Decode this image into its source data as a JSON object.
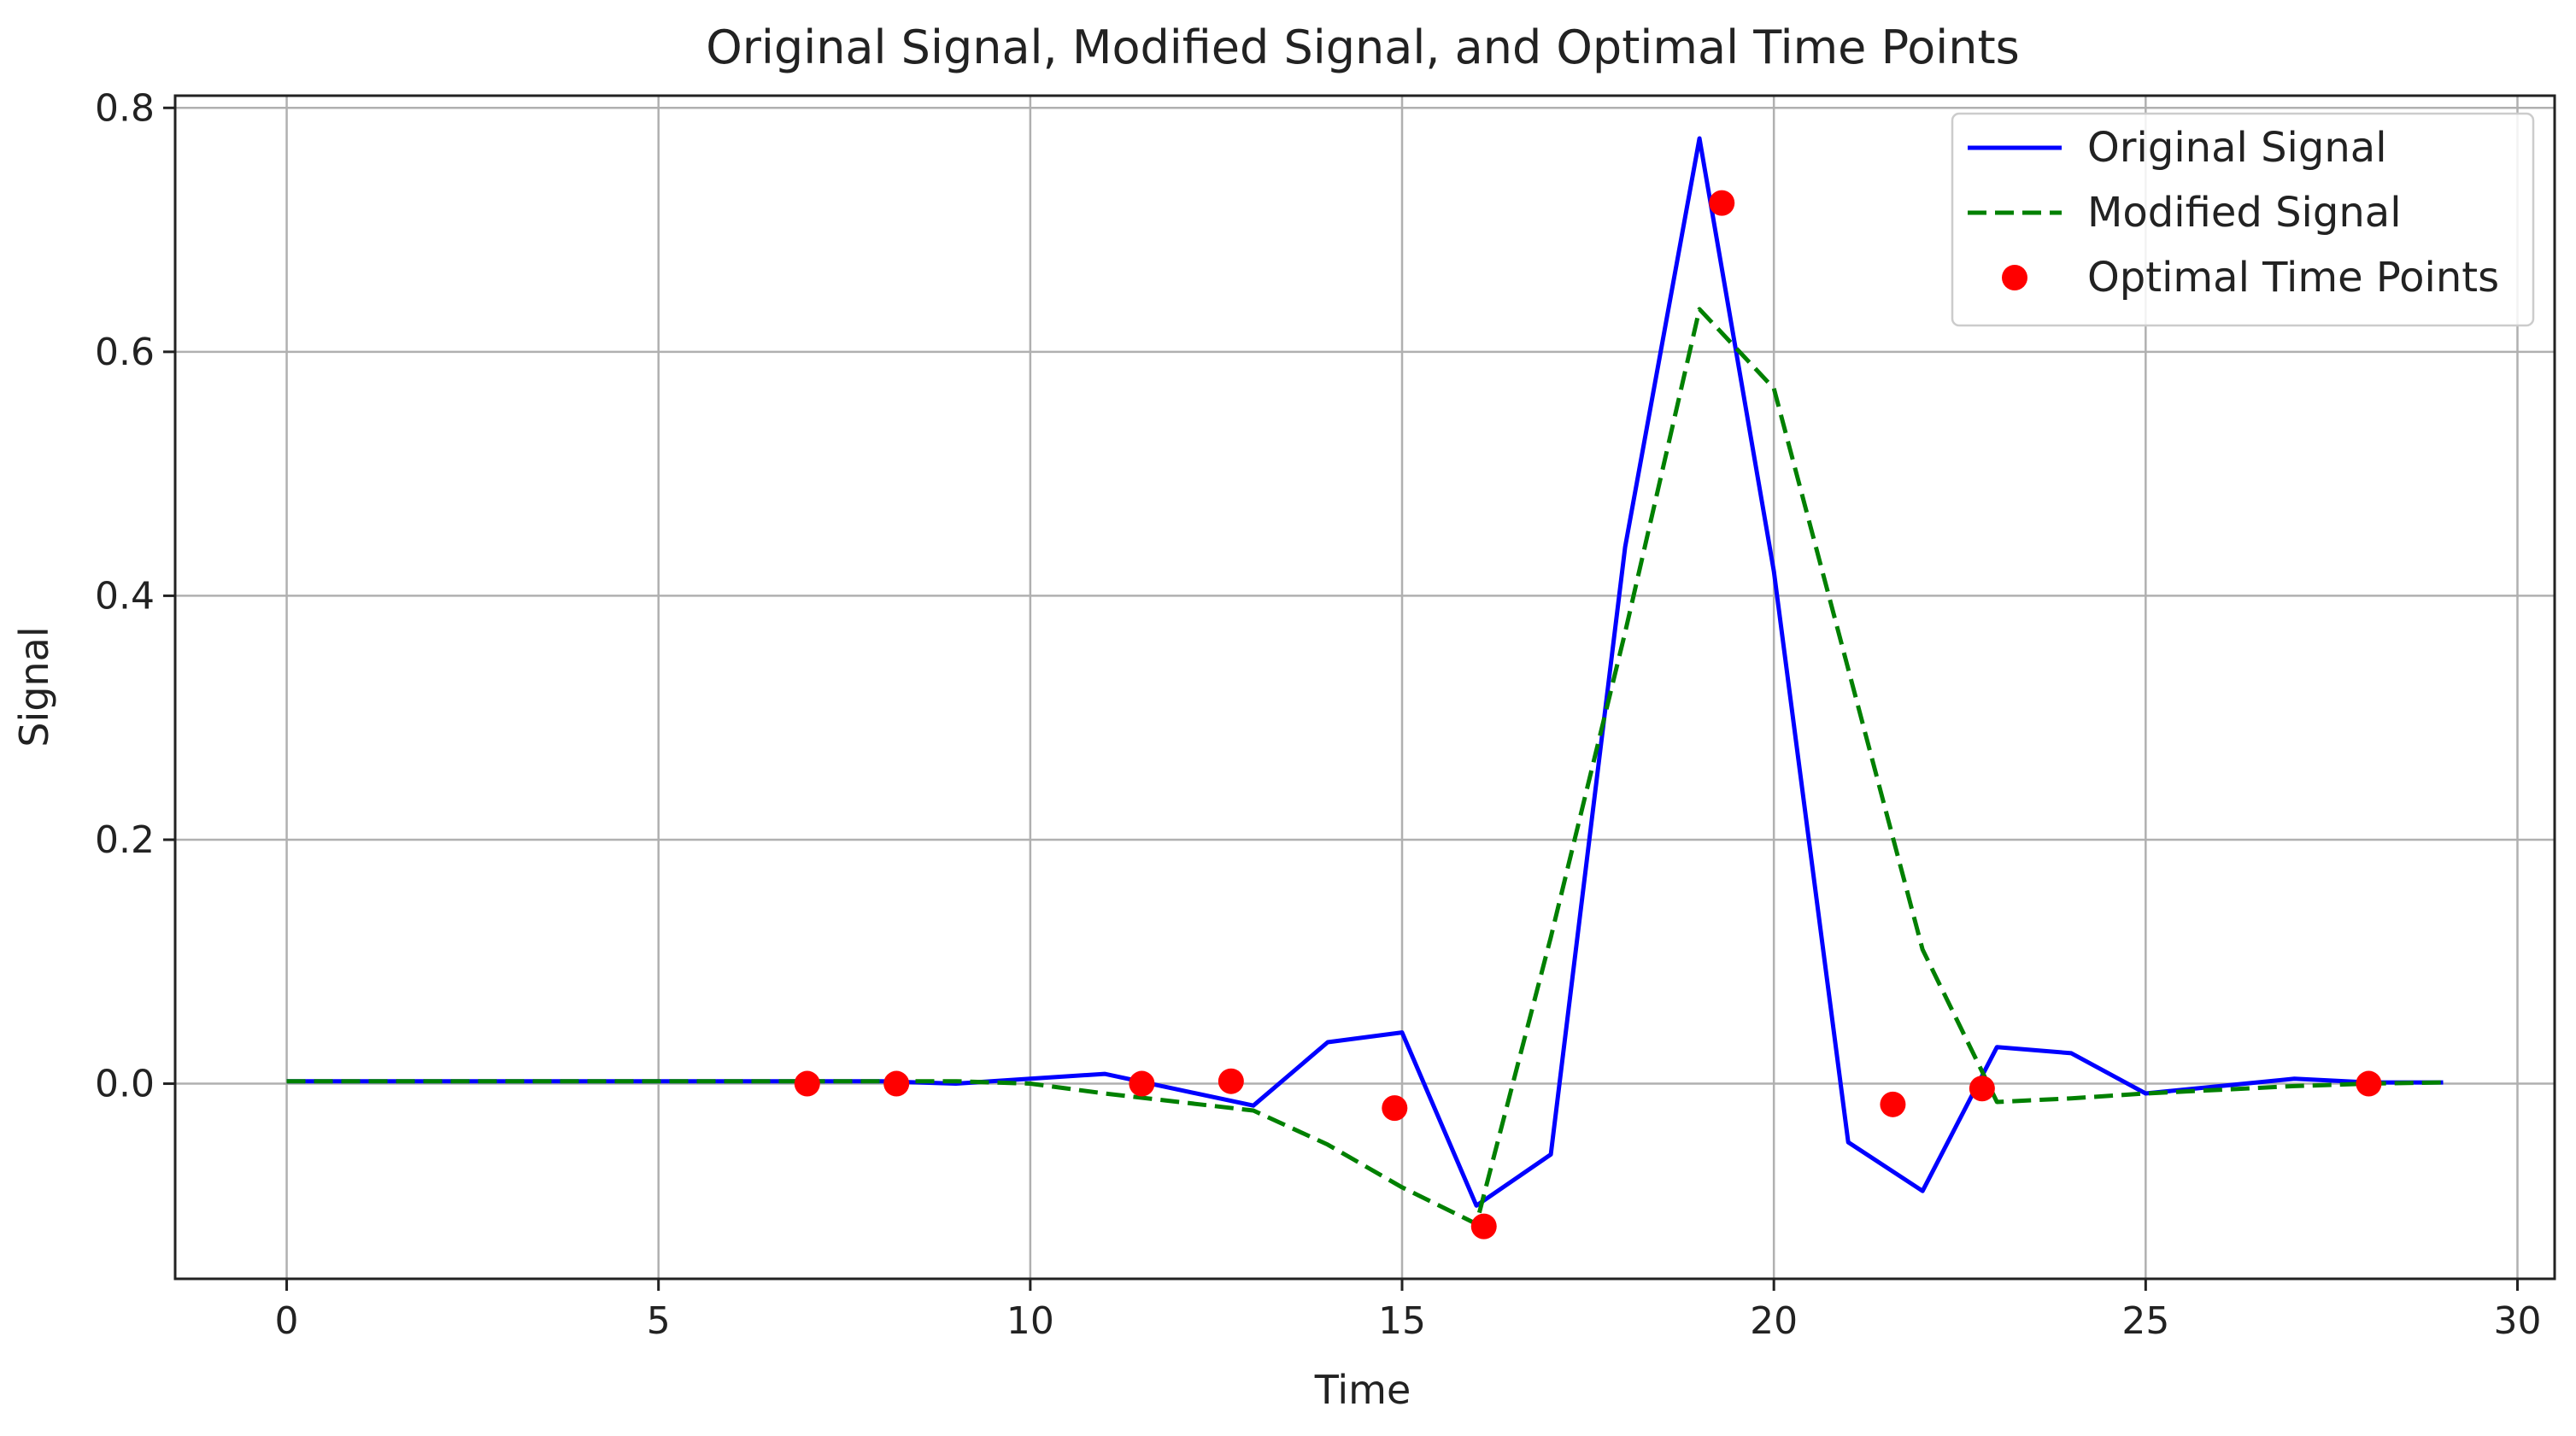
{
  "chart_data": {
    "type": "line",
    "title": "Original Signal, Modified Signal, and Optimal Time Points",
    "xlabel": "Time",
    "ylabel": "Signal",
    "xlim": [
      -1.5,
      30.5
    ],
    "ylim": [
      -0.16,
      0.81
    ],
    "xticks": [
      0,
      5,
      10,
      15,
      20,
      25,
      30
    ],
    "yticks": [
      0.0,
      0.2,
      0.4,
      0.6,
      0.8
    ],
    "grid": true,
    "legend_position": "top-right",
    "series": [
      {
        "name": "Original Signal",
        "kind": "line",
        "style": "solid",
        "color": "#0000ff",
        "x": [
          0,
          1,
          2,
          3,
          4,
          5,
          6,
          7,
          8,
          9,
          10,
          11,
          12,
          13,
          14,
          15,
          16,
          17,
          18,
          19,
          20,
          21,
          22,
          23,
          24,
          25,
          26,
          27,
          28,
          29
        ],
        "y": [
          0.002,
          0.002,
          0.002,
          0.002,
          0.002,
          0.002,
          0.002,
          0.002,
          0.002,
          0.0,
          0.004,
          0.008,
          -0.005,
          -0.018,
          0.034,
          0.042,
          -0.1,
          -0.058,
          0.44,
          0.775,
          0.42,
          -0.048,
          -0.088,
          0.03,
          0.025,
          -0.008,
          -0.002,
          0.004,
          0.001,
          0.001
        ]
      },
      {
        "name": "Modified Signal",
        "kind": "line",
        "style": "dashed",
        "color": "#008000",
        "x": [
          0,
          1,
          2,
          3,
          4,
          5,
          6,
          7,
          8,
          9,
          10,
          11,
          12,
          13,
          14,
          15,
          16,
          17,
          18,
          19,
          20,
          21,
          22,
          23,
          24,
          25,
          26,
          27,
          28,
          29
        ],
        "y": [
          0.002,
          0.002,
          0.002,
          0.002,
          0.002,
          0.002,
          0.002,
          0.002,
          0.002,
          0.002,
          0.0,
          -0.008,
          -0.015,
          -0.022,
          -0.05,
          -0.085,
          -0.115,
          0.12,
          0.37,
          0.635,
          0.57,
          0.34,
          0.11,
          -0.015,
          -0.012,
          -0.008,
          -0.005,
          -0.002,
          0.0,
          0.001
        ]
      },
      {
        "name": "Optimal Time Points",
        "kind": "scatter",
        "color": "#ff0000",
        "x": [
          7.0,
          8.2,
          11.5,
          12.7,
          14.9,
          16.1,
          19.3,
          21.6,
          22.8,
          28.0
        ],
        "y": [
          0.0,
          0.0,
          0.0,
          0.002,
          -0.02,
          -0.117,
          0.722,
          -0.017,
          -0.004,
          0.0
        ]
      }
    ]
  }
}
